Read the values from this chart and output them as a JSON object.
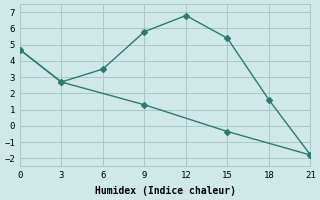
{
  "line1_x": [
    0,
    3,
    6,
    9,
    12,
    15,
    18,
    21
  ],
  "line1_y": [
    4.7,
    2.7,
    3.5,
    5.8,
    6.8,
    5.4,
    1.6,
    -1.8
  ],
  "line2_x": [
    0,
    3,
    9,
    15,
    21
  ],
  "line2_y": [
    4.7,
    2.7,
    1.3,
    -0.35,
    -1.8
  ],
  "color": "#2a7d6e",
  "bg_color": "#cfe8e8",
  "grid_color": "#a8c8c8",
  "xlabel": "Humidex (Indice chaleur)",
  "xlim": [
    0,
    21
  ],
  "ylim": [
    -2.5,
    7.5
  ],
  "xticks": [
    0,
    3,
    6,
    9,
    12,
    15,
    18,
    21
  ],
  "yticks": [
    -2,
    -1,
    0,
    1,
    2,
    3,
    4,
    5,
    6,
    7
  ],
  "linewidth": 1.0,
  "markersize": 3.0,
  "font_family": "monospace"
}
